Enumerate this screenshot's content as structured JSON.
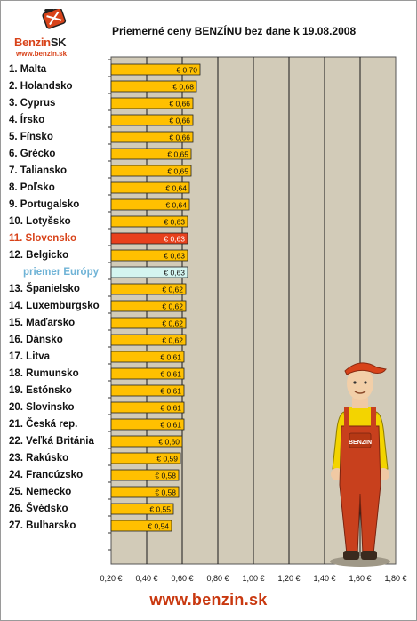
{
  "logo": {
    "brand_main": "Benzin",
    "brand_suffix": "SK",
    "url": "www.benzin.sk"
  },
  "footer_url": "www.benzin.sk",
  "chart_data": {
    "type": "bar",
    "orientation": "horizontal",
    "title": "Priemerné ceny BENZÍNU bez dane k 19.08.2008",
    "xlim": [
      0.2,
      1.8
    ],
    "x_ticks": [
      "0,20 €",
      "0,40 €",
      "0,60 €",
      "0,80 €",
      "1,00 €",
      "1,20 €",
      "1,40 €",
      "1,60 €",
      "1,80 €"
    ],
    "x_tick_values": [
      0.2,
      0.4,
      0.6,
      0.8,
      1.0,
      1.2,
      1.4,
      1.6,
      1.8
    ],
    "grid": true,
    "colors": {
      "bar": "#ffc000",
      "highlight": "#e8401c",
      "average": "#d4f5f0",
      "plot_bg": "#d2cbb8"
    },
    "categories": [
      "1. Malta",
      "2. Holandsko",
      "3. Cyprus",
      "4. Írsko",
      "5. Fínsko",
      "6. Grécko",
      "7. Taliansko",
      "8. Poľsko",
      "9. Portugalsko",
      "10. Lotyšsko",
      "11. Slovensko",
      "12. Belgicko",
      "priemer Európy",
      "13. Španielsko",
      "14. Luxemburgsko",
      "15. Maďarsko",
      "16. Dánsko",
      "17. Litva",
      "18. Rumunsko",
      "19. Estónsko",
      "20. Slovinsko",
      "21. Česká rep.",
      "22. Veľká Británia",
      "23. Rakúsko",
      "24. Francúzsko",
      "25. Nemecko",
      "26. Švédsko",
      "27. Bulharsko"
    ],
    "values": [
      0.7,
      0.68,
      0.66,
      0.66,
      0.66,
      0.65,
      0.65,
      0.64,
      0.64,
      0.63,
      0.63,
      0.63,
      0.63,
      0.62,
      0.62,
      0.62,
      0.62,
      0.61,
      0.61,
      0.61,
      0.61,
      0.61,
      0.6,
      0.59,
      0.58,
      0.58,
      0.55,
      0.54
    ],
    "value_labels": [
      "€ 0,70",
      "€ 0,68",
      "€ 0,66",
      "€ 0,66",
      "€ 0,66",
      "€ 0,65",
      "€ 0,65",
      "€ 0,64",
      "€ 0,64",
      "€ 0,63",
      "€ 0,63",
      "€ 0,63",
      "€ 0,63",
      "€ 0,62",
      "€ 0,62",
      "€ 0,62",
      "€ 0,62",
      "€ 0,61",
      "€ 0,61",
      "€ 0,61",
      "€ 0,61",
      "€ 0,61",
      "€ 0,60",
      "€ 0,59",
      "€ 0,58",
      "€ 0,58",
      "€ 0,55",
      "€ 0,54"
    ],
    "highlight_index": 10,
    "average_index": 12
  }
}
